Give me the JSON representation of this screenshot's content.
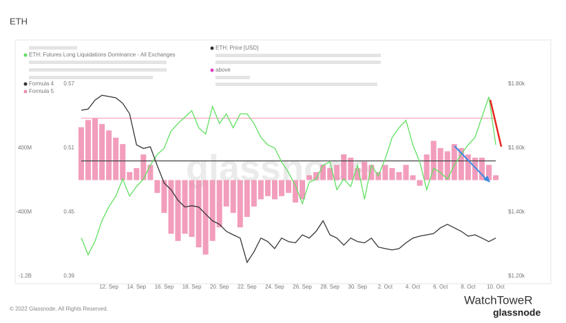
{
  "title": "ETH",
  "chart_data": {
    "type": "combo",
    "watermark": "glassnode",
    "categories": [
      null,
      null,
      null,
      null,
      "12. Sep",
      null,
      null,
      null,
      "14. Sep",
      null,
      null,
      null,
      "16. Sep",
      null,
      null,
      null,
      "18. Sep",
      null,
      null,
      null,
      "20. Sep",
      null,
      null,
      null,
      "22. Sep",
      null,
      null,
      null,
      "24. Sep",
      null,
      null,
      null,
      "26. Sep",
      null,
      null,
      null,
      "28. Sep",
      null,
      null,
      null,
      "30. Sep",
      null,
      null,
      null,
      "2. Oct",
      null,
      null,
      null,
      "4. Oct",
      null,
      null,
      null,
      "6. Oct",
      null,
      null,
      null,
      "8. Oct",
      null,
      null,
      null,
      "10. Oct"
    ],
    "ylim": [
      0.39,
      0.57
    ],
    "yticks": [
      0.39,
      0.45,
      0.51,
      0.57
    ],
    "y2lim": [
      1200,
      1800
    ],
    "y2ticks": [
      {
        "value": 1200,
        "label": "$1.20k"
      },
      {
        "value": 1400,
        "label": "$1.40k"
      },
      {
        "value": 1600,
        "label": "$1.60k"
      },
      {
        "value": 1800,
        "label": "$1.80k"
      }
    ],
    "y3lim": [
      -1200000000,
      1200000000
    ],
    "y3ticks": [
      {
        "value": -1200000000,
        "label": "-1.2B"
      },
      {
        "value": -400000000,
        "label": "-400M"
      },
      {
        "value": 400000000,
        "label": "400M"
      }
    ],
    "grid": false,
    "series": [
      {
        "name": "ETH: Futures Long Liquidations Dominance - All Exchanges",
        "type": "line",
        "axis": "y",
        "color": "#5fe05f",
        "values": [
          0.426,
          0.41,
          0.423,
          0.442,
          0.455,
          0.465,
          0.481,
          0.465,
          0.474,
          0.481,
          0.494,
          0.504,
          0.51,
          0.526,
          0.533,
          0.539,
          0.545,
          0.529,
          0.523,
          0.549,
          0.533,
          0.542,
          0.529,
          0.542,
          0.542,
          0.533,
          0.52,
          0.513,
          0.51,
          0.497,
          0.487,
          0.475,
          0.458,
          0.478,
          0.481,
          0.494,
          0.497,
          0.471,
          0.481,
          0.474,
          0.494,
          0.462,
          0.494,
          0.484,
          0.5,
          0.52,
          0.529,
          0.536,
          0.513,
          0.497,
          0.471,
          0.491,
          0.487,
          0.481,
          0.494,
          0.504,
          0.513,
          0.52,
          0.539,
          0.558,
          0.513
        ]
      },
      {
        "name": "ETH: Price [USD]",
        "type": "line",
        "axis": "y2",
        "color": "#333333",
        "values": [
          1718,
          1722,
          1750,
          1765,
          1761,
          1757,
          1740,
          1707,
          1610,
          1599,
          1604,
          1545,
          1491,
          1470,
          1437,
          1416,
          1420,
          1416,
          1394,
          1373,
          1362,
          1340,
          1329,
          1319,
          1243,
          1276,
          1319,
          1308,
          1286,
          1319,
          1308,
          1304,
          1329,
          1319,
          1340,
          1373,
          1329,
          1319,
          1297,
          1319,
          1308,
          1304,
          1319,
          1291,
          1286,
          1282,
          1286,
          1304,
          1319,
          1325,
          1329,
          1333,
          1351,
          1362,
          1351,
          1340,
          1325,
          1329,
          1319,
          1308,
          1319
        ]
      },
      {
        "name": "Formula 5",
        "type": "bar",
        "axis": "y3",
        "color": "#f08cb0",
        "values": [
          660000000,
          750000000,
          770000000,
          700000000,
          620000000,
          530000000,
          450000000,
          100000000,
          150000000,
          320000000,
          190000000,
          -160000000,
          -410000000,
          -670000000,
          -760000000,
          -670000000,
          -710000000,
          -840000000,
          -930000000,
          -760000000,
          -590000000,
          -330000000,
          -410000000,
          -590000000,
          -460000000,
          -330000000,
          -240000000,
          -200000000,
          -240000000,
          -200000000,
          -160000000,
          -280000000,
          -240000000,
          60000000,
          100000000,
          190000000,
          150000000,
          190000000,
          320000000,
          280000000,
          150000000,
          230000000,
          190000000,
          100000000,
          190000000,
          150000000,
          100000000,
          190000000,
          60000000,
          -70000000,
          320000000,
          490000000,
          400000000,
          360000000,
          450000000,
          400000000,
          320000000,
          280000000,
          280000000,
          190000000,
          60000000
        ]
      }
    ],
    "reference_lines": [
      {
        "name": "above",
        "axis": "y",
        "value": 0.538,
        "color": "#f4a6bb",
        "marker_color": "#e03fc3"
      },
      {
        "name": "Formula 4",
        "axis": "y",
        "value": 0.498,
        "color": "#444444",
        "marker_color": "#333333"
      }
    ]
  },
  "footer": {
    "copyright": "© 2022 Glassnode. All Rights Reserved.",
    "brand": "WatchToweR",
    "brand_sub": "glassnode"
  }
}
